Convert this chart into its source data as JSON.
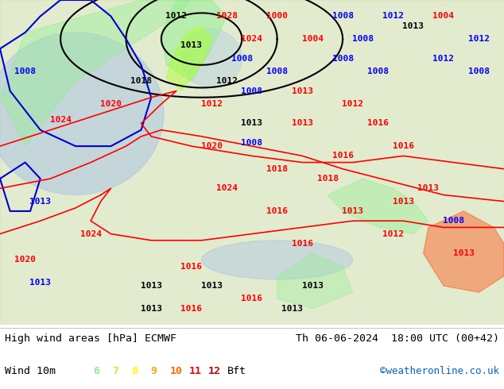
{
  "title_left": "High wind areas [hPa] ECMWF",
  "title_right": "Th 06-06-2024  18:00 UTC (00+42)",
  "subtitle_left": "Wind 10m",
  "subtitle_right": "©weatheronline.co.uk",
  "bft_labels": [
    "6",
    "7",
    "8",
    "9",
    "10",
    "11",
    "12",
    "Bft"
  ],
  "bft_colors": [
    "#90ee90",
    "#adff2f",
    "#ffff00",
    "#ffa500",
    "#ff6600",
    "#ff0000",
    "#cc0000",
    "#000000"
  ],
  "bg_color": "#ffffff",
  "map_bg": "#90c090",
  "bottom_bar_color": "#f0f0f0",
  "title_fontsize": 10,
  "legend_fontsize": 10,
  "fig_width": 6.34,
  "fig_height": 4.9,
  "dpi": 100
}
